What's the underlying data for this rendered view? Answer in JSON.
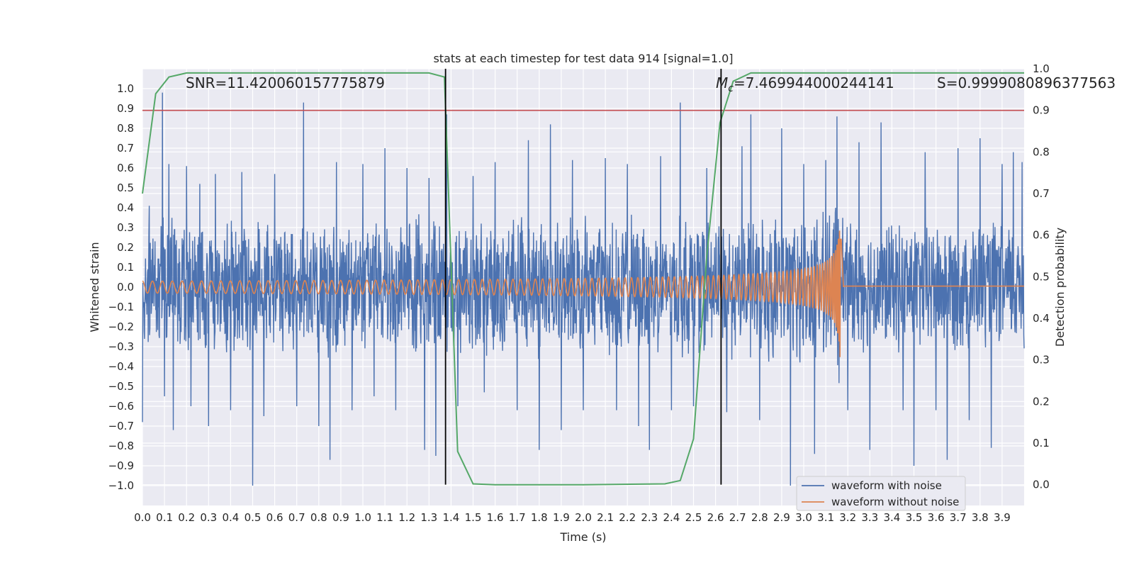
{
  "chart_data": {
    "type": "line",
    "title": "stats at each timestep for test data 914 [signal=1.0]",
    "xlabel": "Time (s)",
    "ylabel": "Whitened strain",
    "y2label": "Detection probability",
    "xlim": [
      0.0,
      4.0
    ],
    "ylim": [
      -1.1,
      1.1
    ],
    "y2lim": [
      -0.05,
      1.0
    ],
    "xticks": [
      "0.0",
      "0.1",
      "0.2",
      "0.3",
      "0.4",
      "0.5",
      "0.6",
      "0.7",
      "0.8",
      "0.9",
      "1.0",
      "1.1",
      "1.2",
      "1.3",
      "1.4",
      "1.5",
      "1.6",
      "1.7",
      "1.8",
      "1.9",
      "2.0",
      "2.1",
      "2.2",
      "2.3",
      "2.4",
      "2.5",
      "2.6",
      "2.7",
      "2.8",
      "2.9",
      "3.0",
      "3.1",
      "3.2",
      "3.3",
      "3.4",
      "3.5",
      "3.6",
      "3.7",
      "3.8",
      "3.9"
    ],
    "yticks": [
      "1.0",
      "0.9",
      "0.8",
      "0.7",
      "0.6",
      "0.5",
      "0.4",
      "0.3",
      "0.2",
      "0.1",
      "0.0",
      "−0.1",
      "−0.2",
      "−0.3",
      "−0.4",
      "−0.5",
      "−0.6",
      "−0.7",
      "−0.8",
      "−0.9",
      "−1.0"
    ],
    "y2ticks": [
      "1.0",
      "0.9",
      "0.8",
      "0.7",
      "0.6",
      "0.5",
      "0.4",
      "0.3",
      "0.2",
      "0.1",
      "0.0"
    ],
    "grid": true,
    "legend_position": "bottom-right",
    "annotations": {
      "snr": "SNR=11.420060157775879",
      "mc_symbol": "M",
      "mc_sub": "c",
      "mc_value": "=7.469944000244141",
      "s": "S=0.9999080896377563"
    },
    "threshold": {
      "y2": 0.9,
      "color": "#c44e52"
    },
    "vertical_markers": [
      {
        "x": 1.375,
        "y2_range": [
          0.0,
          1.0
        ]
      },
      {
        "x": 2.625,
        "y2_range": [
          0.0,
          1.0
        ]
      }
    ],
    "series": [
      {
        "name": "waveform with noise",
        "color": "#4c72b0",
        "axis": "left",
        "noise_envelope": 0.35,
        "spikes": [
          [
            0.0,
            -0.68
          ],
          [
            0.03,
            0.41
          ],
          [
            0.09,
            0.98
          ],
          [
            0.1,
            -0.55
          ],
          [
            0.12,
            0.62
          ],
          [
            0.14,
            -0.72
          ],
          [
            0.2,
            0.61
          ],
          [
            0.22,
            -0.6
          ],
          [
            0.26,
            0.52
          ],
          [
            0.3,
            -0.7
          ],
          [
            0.33,
            0.57
          ],
          [
            0.4,
            -0.62
          ],
          [
            0.45,
            0.58
          ],
          [
            0.5,
            -1.0
          ],
          [
            0.55,
            -0.65
          ],
          [
            0.6,
            0.57
          ],
          [
            0.7,
            -0.6
          ],
          [
            0.73,
            0.93
          ],
          [
            0.8,
            -0.7
          ],
          [
            0.85,
            -0.87
          ],
          [
            0.88,
            0.63
          ],
          [
            0.95,
            -0.62
          ],
          [
            1.0,
            0.62
          ],
          [
            1.05,
            -0.55
          ],
          [
            1.1,
            0.7
          ],
          [
            1.15,
            -0.62
          ],
          [
            1.2,
            0.6
          ],
          [
            1.28,
            -0.82
          ],
          [
            1.3,
            0.55
          ],
          [
            1.33,
            -0.85
          ],
          [
            1.38,
            0.87
          ],
          [
            1.43,
            -0.6
          ],
          [
            1.5,
            0.56
          ],
          [
            1.55,
            -0.53
          ],
          [
            1.6,
            0.63
          ],
          [
            1.7,
            -0.62
          ],
          [
            1.75,
            0.74
          ],
          [
            1.8,
            -0.82
          ],
          [
            1.85,
            0.82
          ],
          [
            1.9,
            -0.72
          ],
          [
            1.95,
            0.64
          ],
          [
            2.0,
            -0.62
          ],
          [
            2.1,
            0.65
          ],
          [
            2.15,
            -0.62
          ],
          [
            2.2,
            0.62
          ],
          [
            2.25,
            -0.7
          ],
          [
            2.3,
            -0.82
          ],
          [
            2.35,
            0.66
          ],
          [
            2.4,
            -0.62
          ],
          [
            2.44,
            0.93
          ],
          [
            2.5,
            -0.6
          ],
          [
            2.56,
            0.6
          ],
          [
            2.65,
            -0.63
          ],
          [
            2.72,
            0.71
          ],
          [
            2.76,
            0.87
          ],
          [
            2.8,
            -0.67
          ],
          [
            2.9,
            0.8
          ],
          [
            2.94,
            -1.0
          ],
          [
            3.0,
            0.62
          ],
          [
            3.05,
            -0.84
          ],
          [
            3.1,
            0.64
          ],
          [
            3.15,
            0.86
          ],
          [
            3.2,
            -0.62
          ],
          [
            3.25,
            0.73
          ],
          [
            3.3,
            -0.82
          ],
          [
            3.35,
            0.83
          ],
          [
            3.45,
            -0.62
          ],
          [
            3.5,
            -0.9
          ],
          [
            3.55,
            0.68
          ],
          [
            3.6,
            -0.62
          ],
          [
            3.65,
            -0.87
          ],
          [
            3.7,
            0.7
          ],
          [
            3.75,
            -0.67
          ],
          [
            3.8,
            0.75
          ],
          [
            3.85,
            -0.81
          ],
          [
            3.9,
            0.62
          ],
          [
            3.95,
            0.68
          ],
          [
            3.99,
            0.63
          ]
        ]
      },
      {
        "name": "waveform without noise",
        "color": "#dd8452",
        "axis": "left",
        "chirp": {
          "start_amplitude": 0.03,
          "start_frequency_hz": 22,
          "merger_time": 3.17,
          "peak_amplitude": 0.37,
          "ringdown_end": 3.18,
          "post_merger_value": 0.005
        }
      },
      {
        "name": "",
        "color": "#55a868",
        "axis": "right",
        "points": [
          [
            0.0,
            0.7
          ],
          [
            0.06,
            0.94
          ],
          [
            0.12,
            0.98
          ],
          [
            0.2,
            0.99
          ],
          [
            0.4,
            0.99
          ],
          [
            0.8,
            0.99
          ],
          [
            1.2,
            0.99
          ],
          [
            1.3,
            0.99
          ],
          [
            1.37,
            0.98
          ],
          [
            1.43,
            0.08
          ],
          [
            1.5,
            0.002
          ],
          [
            1.6,
            0.0
          ],
          [
            2.0,
            0.0
          ],
          [
            2.37,
            0.002
          ],
          [
            2.44,
            0.01
          ],
          [
            2.5,
            0.11
          ],
          [
            2.56,
            0.55
          ],
          [
            2.62,
            0.87
          ],
          [
            2.68,
            0.97
          ],
          [
            2.76,
            0.99
          ],
          [
            3.0,
            0.99
          ],
          [
            3.5,
            0.99
          ],
          [
            4.0,
            0.99
          ]
        ]
      }
    ]
  }
}
